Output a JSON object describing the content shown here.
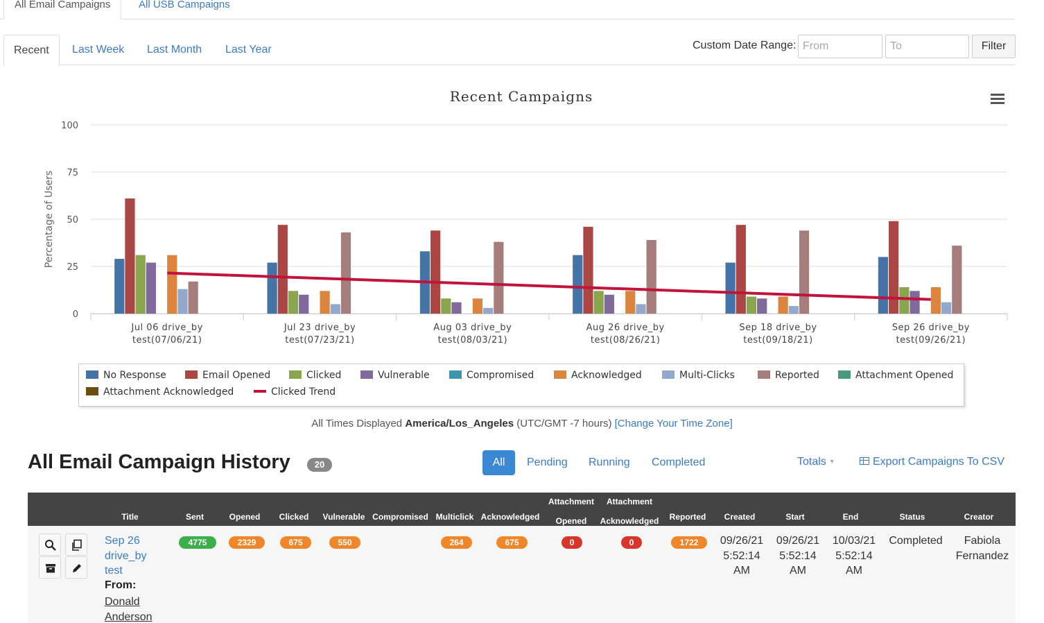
{
  "top_tabs": {
    "active": "All Email Campaigns",
    "other": "All USB Campaigns"
  },
  "date_tabs": [
    "Recent",
    "Last Week",
    "Last Month",
    "Last Year"
  ],
  "date_range": {
    "label": "Custom Date Range:",
    "from_placeholder": "From",
    "to_placeholder": "To",
    "filter_label": "Filter"
  },
  "chart_data": {
    "type": "bar",
    "title": "Recent Campaigns",
    "ylabel": "Percentage of Users",
    "ylim": [
      0,
      100
    ],
    "yticks": [
      0,
      25,
      50,
      75,
      100
    ],
    "categories": [
      [
        "Jul 06 drive_by",
        "test(07/06/21)"
      ],
      [
        "Jul 23 drive_by",
        "test(07/23/21)"
      ],
      [
        "Aug 03 drive_by",
        "test(08/03/21)"
      ],
      [
        "Aug 26 drive_by",
        "test(08/26/21)"
      ],
      [
        "Sep 18 drive_by",
        "test(09/18/21)"
      ],
      [
        "Sep 26 drive_by",
        "test(09/26/21)"
      ]
    ],
    "series": [
      {
        "name": "No Response",
        "color": "#4572a7",
        "values": [
          29,
          27,
          33,
          31,
          27,
          30
        ]
      },
      {
        "name": "Email Opened",
        "color": "#aa4643",
        "values": [
          61,
          47,
          44,
          46,
          47,
          49
        ]
      },
      {
        "name": "Clicked",
        "color": "#89a54e",
        "values": [
          31,
          12,
          8,
          12,
          9,
          14
        ]
      },
      {
        "name": "Vulnerable",
        "color": "#80699b",
        "values": [
          27,
          10,
          6,
          10,
          8,
          12
        ]
      },
      {
        "name": "Compromised",
        "color": "#3d96ae",
        "values": [
          0,
          0,
          0,
          0,
          0,
          0
        ]
      },
      {
        "name": "Acknowledged",
        "color": "#db843d",
        "values": [
          31,
          12,
          8,
          12,
          9,
          14
        ]
      },
      {
        "name": "Multi-Clicks",
        "color": "#92a8cd",
        "values": [
          13,
          5,
          3,
          5,
          4,
          6
        ]
      },
      {
        "name": "Reported",
        "color": "#a47d7c",
        "values": [
          17,
          43,
          38,
          39,
          44,
          36
        ]
      },
      {
        "name": "Attachment Opened",
        "color": "#4a9a7a",
        "values": [
          0,
          0,
          0,
          0,
          0,
          0
        ]
      },
      {
        "name": "Attachment Acknowledged",
        "color": "#6b4d10",
        "values": [
          0,
          0,
          0,
          0,
          0,
          0
        ]
      }
    ],
    "trend": {
      "name": "Clicked Trend",
      "color": "#c0143c",
      "start": 21.5,
      "end": 7.5
    },
    "legend_position": "bottom",
    "grid": true
  },
  "timezone_note": {
    "prefix": "All Times Displayed",
    "zone": "America/Los_Angeles",
    "offset": "(UTC/GMT -7 hours)",
    "link": "[Change Your Time Zone]"
  },
  "history": {
    "title": "All Email Campaign History",
    "count": "20",
    "filters": [
      "All",
      "Pending",
      "Running",
      "Completed"
    ],
    "totals_label": "Totals",
    "export_label": "Export Campaigns To CSV"
  },
  "table": {
    "headers": {
      "title": "Title",
      "sent": "Sent",
      "opened": "Opened",
      "clicked": "Clicked",
      "vulnerable": "Vulnerable",
      "compromised": "Compromised",
      "multiclick": "Multiclick",
      "acknowledged": "Acknowledged",
      "att_opened_1": "Attachment",
      "att_opened_2": "Opened",
      "att_ack_1": "Attachment",
      "att_ack_2": "Acknowledged",
      "reported": "Reported",
      "created": "Created",
      "start": "Start",
      "end": "End",
      "status": "Status",
      "creator": "Creator"
    },
    "row": {
      "title_lines": [
        "Sep 26",
        "drive_by",
        "test"
      ],
      "from_label": "From:",
      "from_name_lines": [
        "Donald",
        "Anderson"
      ],
      "sent": "4775",
      "opened": "2329",
      "clicked": "675",
      "vulnerable": "550",
      "multiclick": "264",
      "acknowledged": "675",
      "attachment_opened": "0",
      "attachment_acknowledged": "0",
      "reported": "1722",
      "created": [
        "09/26/21",
        "5:52:14",
        "AM"
      ],
      "start": [
        "09/26/21",
        "5:52:14",
        "AM"
      ],
      "end": [
        "10/03/21",
        "5:52:14",
        "AM"
      ],
      "status": "Completed",
      "creator": [
        "Fabiola",
        "Fernandez"
      ]
    },
    "pill_colors": {
      "green": "#3cae4a",
      "orange": "#f0862a",
      "red": "#d9362b"
    }
  }
}
